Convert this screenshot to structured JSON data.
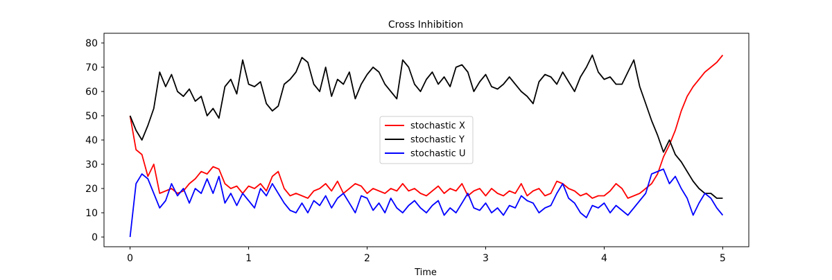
{
  "chart_data": {
    "type": "line",
    "title": "Cross Inhibition",
    "xlabel": "Time",
    "ylabel": "",
    "xlim": [
      -0.22,
      5.22
    ],
    "ylim": [
      -4,
      84
    ],
    "x_ticks": [
      0,
      1,
      2,
      3,
      4,
      5
    ],
    "y_ticks": [
      0,
      10,
      20,
      30,
      40,
      50,
      60,
      70,
      80
    ],
    "grid": false,
    "legend_position": "center",
    "x": [
      0.0,
      0.05,
      0.1,
      0.15,
      0.2,
      0.25,
      0.3,
      0.35,
      0.4,
      0.45,
      0.5,
      0.55,
      0.6,
      0.65,
      0.7,
      0.75,
      0.8,
      0.85,
      0.9,
      0.95,
      1.0,
      1.05,
      1.1,
      1.15,
      1.2,
      1.25,
      1.3,
      1.35,
      1.4,
      1.45,
      1.5,
      1.55,
      1.6,
      1.65,
      1.7,
      1.75,
      1.8,
      1.85,
      1.9,
      1.95,
      2.0,
      2.05,
      2.1,
      2.15,
      2.2,
      2.25,
      2.3,
      2.35,
      2.4,
      2.45,
      2.5,
      2.55,
      2.6,
      2.65,
      2.7,
      2.75,
      2.8,
      2.85,
      2.9,
      2.95,
      3.0,
      3.05,
      3.1,
      3.15,
      3.2,
      3.25,
      3.3,
      3.35,
      3.4,
      3.45,
      3.5,
      3.55,
      3.6,
      3.65,
      3.7,
      3.75,
      3.8,
      3.85,
      3.9,
      3.95,
      4.0,
      4.05,
      4.1,
      4.15,
      4.2,
      4.25,
      4.3,
      4.35,
      4.4,
      4.45,
      4.5,
      4.55,
      4.6,
      4.65,
      4.7,
      4.75,
      4.8,
      4.85,
      4.9,
      4.95,
      5.0
    ],
    "series": [
      {
        "name": "stochastic X",
        "color": "#ff0000",
        "values": [
          50,
          36,
          34,
          25,
          30,
          18,
          19,
          20,
          18,
          19,
          22,
          24,
          27,
          26,
          29,
          28,
          22,
          20,
          21,
          18,
          21,
          20,
          22,
          19,
          25,
          27,
          20,
          17,
          18,
          17,
          16,
          19,
          20,
          22,
          19,
          23,
          18,
          20,
          22,
          21,
          18,
          20,
          19,
          18,
          20,
          19,
          22,
          19,
          20,
          18,
          17,
          19,
          21,
          18,
          20,
          19,
          22,
          17,
          19,
          20,
          17,
          20,
          18,
          17,
          19,
          18,
          22,
          17,
          19,
          20,
          17,
          18,
          23,
          22,
          20,
          19,
          17,
          18,
          16,
          17,
          17,
          19,
          22,
          20,
          16,
          17,
          18,
          20,
          22,
          26,
          33,
          38,
          44,
          52,
          58,
          62,
          65,
          68,
          70,
          72,
          75
        ]
      },
      {
        "name": "stochastic Y",
        "color": "#000000",
        "values": [
          50,
          44,
          40,
          46,
          53,
          68,
          62,
          67,
          60,
          58,
          61,
          56,
          58,
          50,
          53,
          49,
          62,
          65,
          59,
          73,
          63,
          62,
          64,
          55,
          52,
          54,
          63,
          65,
          68,
          74,
          72,
          63,
          60,
          70,
          58,
          65,
          63,
          68,
          57,
          63,
          67,
          70,
          68,
          63,
          60,
          57,
          73,
          70,
          63,
          60,
          65,
          68,
          63,
          66,
          62,
          70,
          71,
          68,
          60,
          64,
          67,
          62,
          61,
          63,
          66,
          63,
          60,
          58,
          55,
          64,
          67,
          66,
          63,
          68,
          64,
          60,
          66,
          70,
          75,
          68,
          65,
          66,
          63,
          63,
          68,
          73,
          62,
          55,
          48,
          42,
          35,
          40,
          34,
          31,
          27,
          23,
          20,
          18,
          18,
          16,
          16
        ]
      },
      {
        "name": "stochastic U",
        "color": "#0000ff",
        "values": [
          0,
          22,
          26,
          24,
          18,
          12,
          15,
          22,
          17,
          20,
          14,
          20,
          18,
          24,
          18,
          25,
          14,
          18,
          13,
          18,
          15,
          12,
          20,
          17,
          22,
          18,
          14,
          11,
          10,
          14,
          10,
          15,
          13,
          17,
          12,
          16,
          18,
          14,
          10,
          17,
          16,
          11,
          14,
          10,
          16,
          12,
          10,
          13,
          15,
          12,
          10,
          13,
          15,
          9,
          12,
          10,
          14,
          18,
          12,
          11,
          14,
          10,
          12,
          9,
          13,
          12,
          17,
          15,
          14,
          10,
          12,
          13,
          18,
          22,
          16,
          14,
          10,
          8,
          13,
          12,
          14,
          10,
          13,
          11,
          9,
          12,
          15,
          18,
          26,
          27,
          28,
          22,
          25,
          20,
          16,
          9,
          14,
          18,
          16,
          12,
          9
        ]
      }
    ]
  }
}
